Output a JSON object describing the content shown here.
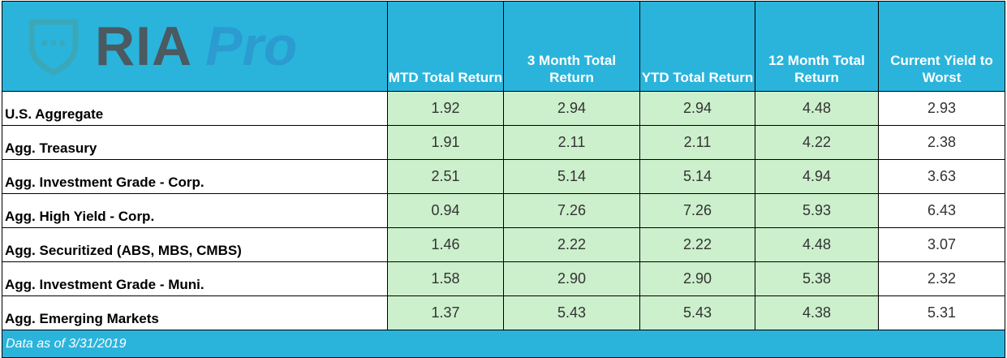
{
  "header": {
    "logo": {
      "brand": "RIA",
      "product": "Pro"
    },
    "columns": [
      "MTD Total Return",
      "3 Month Total Return",
      "YTD Total Return",
      "12 Month Total Return",
      "Current Yield to Worst"
    ]
  },
  "table": {
    "rows": [
      [
        "U.S. Aggregate",
        "1.92",
        "2.94",
        "2.94",
        "4.48",
        "2.93"
      ],
      [
        "Agg. Treasury",
        "1.91",
        "2.11",
        "2.11",
        "4.22",
        "2.38"
      ],
      [
        "Agg. Investment Grade - Corp.",
        "2.51",
        "5.14",
        "5.14",
        "4.94",
        "3.63"
      ],
      [
        "Agg. High Yield - Corp.",
        "0.94",
        "7.26",
        "7.26",
        "5.93",
        "6.43"
      ],
      [
        "Agg. Securitized (ABS, MBS, CMBS)",
        "1.46",
        "2.22",
        "2.22",
        "4.48",
        "3.07"
      ],
      [
        "Agg. Investment Grade - Muni.",
        "1.58",
        "2.90",
        "2.90",
        "5.38",
        "2.32"
      ],
      [
        "Agg. Emerging Markets",
        "1.37",
        "5.43",
        "5.43",
        "4.38",
        "5.31"
      ]
    ]
  },
  "footer": {
    "note": "Data as of 3/31/2019"
  }
}
